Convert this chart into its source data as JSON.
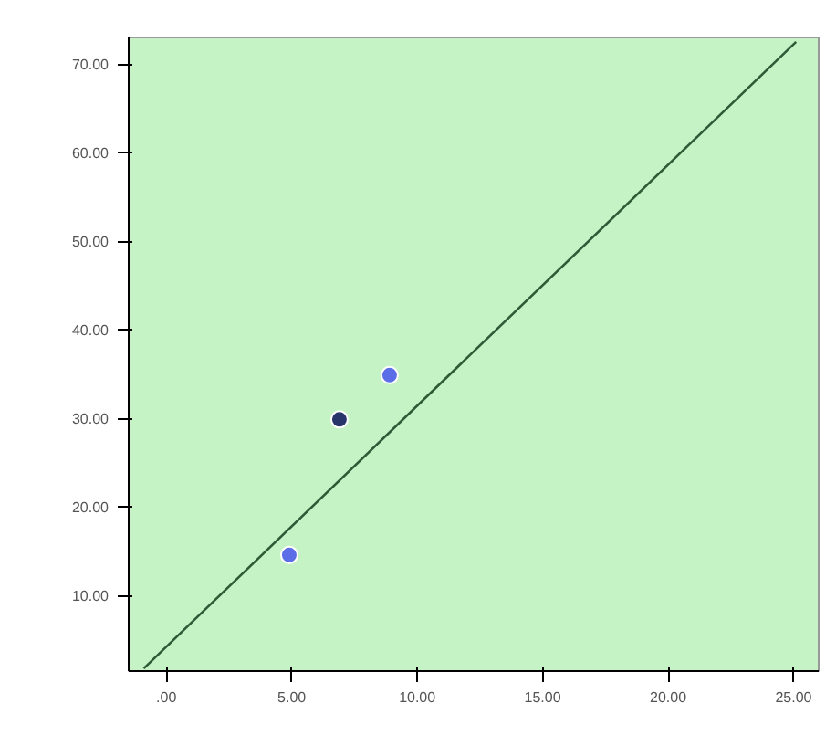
{
  "chart_data": {
    "type": "scatter",
    "xlim": [
      -1.5,
      26
    ],
    "ylim": [
      1.5,
      73
    ],
    "xticks": [
      {
        "value": 0,
        "label": ".00"
      },
      {
        "value": 5,
        "label": "5.00"
      },
      {
        "value": 10,
        "label": "10.00"
      },
      {
        "value": 15,
        "label": "15.00"
      },
      {
        "value": 20,
        "label": "20.00"
      },
      {
        "value": 25,
        "label": "25.00"
      }
    ],
    "yticks": [
      {
        "value": 10,
        "label": "10.00"
      },
      {
        "value": 20,
        "label": "20.00"
      },
      {
        "value": 30,
        "label": "30.00"
      },
      {
        "value": 40,
        "label": "40.00"
      },
      {
        "value": 50,
        "label": "50.00"
      },
      {
        "value": 60,
        "label": "60.00"
      },
      {
        "value": 70,
        "label": "70.00"
      }
    ],
    "grid": false,
    "series": [
      {
        "marker": "circle",
        "x": [
          4.9,
          6.9,
          8.9
        ],
        "values": [
          14.6,
          29.9,
          34.9
        ],
        "colors": [
          "#5b6ee8",
          "#27356b",
          "#5b6ee8"
        ]
      },
      {
        "type": "line",
        "x": [
          -0.9,
          25.1
        ],
        "values": [
          1.8,
          72.5
        ],
        "color": "#2f5a36"
      }
    ]
  }
}
